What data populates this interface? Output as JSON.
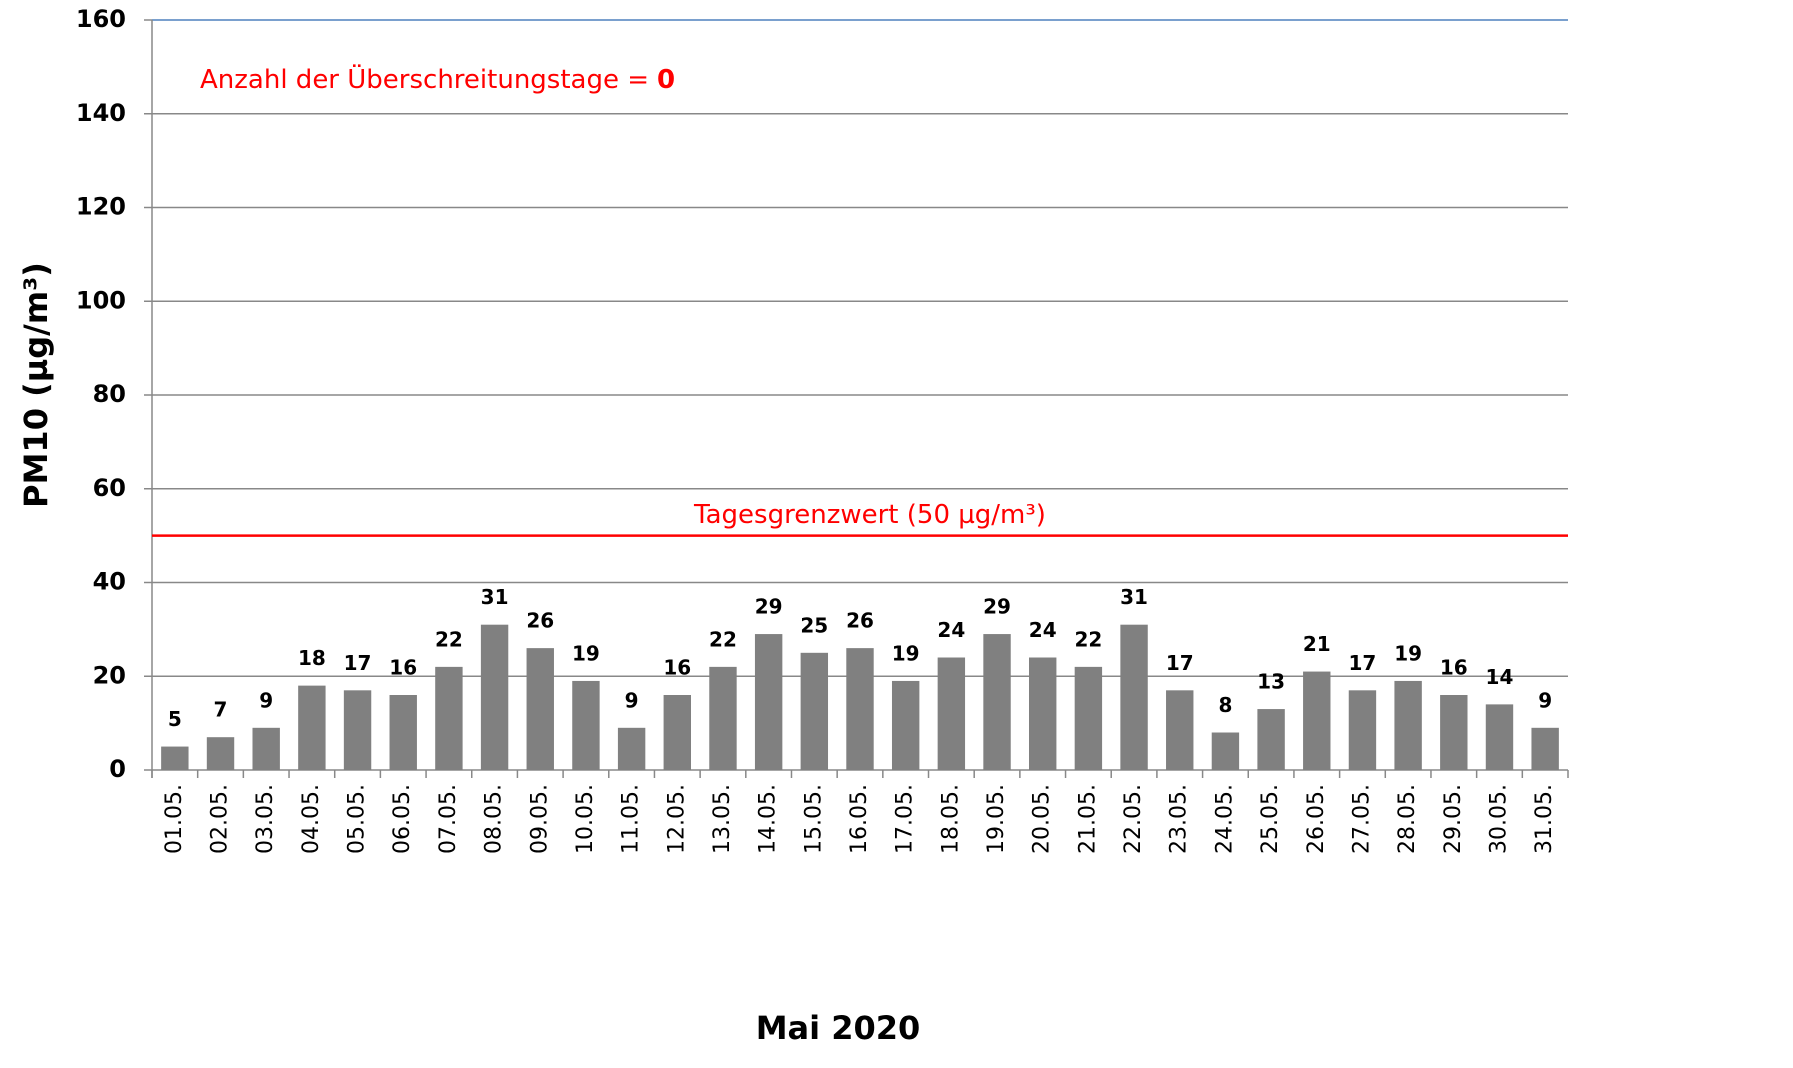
{
  "chart_data": {
    "type": "bar",
    "x_label": "Mai 2020",
    "y_label": "PM10 (µg/m³)",
    "categories": [
      "01.05.",
      "02.05.",
      "03.05.",
      "04.05.",
      "05.05.",
      "06.05.",
      "07.05.",
      "08.05.",
      "09.05.",
      "10.05.",
      "11.05.",
      "12.05.",
      "13.05.",
      "14.05.",
      "15.05.",
      "16.05.",
      "17.05.",
      "18.05.",
      "19.05.",
      "20.05.",
      "21.05.",
      "22.05.",
      "23.05.",
      "24.05.",
      "25.05.",
      "26.05.",
      "27.05.",
      "28.05.",
      "29.05.",
      "30.05.",
      "31.05."
    ],
    "values": [
      5,
      7,
      9,
      18,
      17,
      16,
      22,
      31,
      26,
      19,
      9,
      16,
      22,
      29,
      25,
      26,
      19,
      24,
      29,
      24,
      22,
      31,
      17,
      8,
      13,
      21,
      17,
      19,
      16,
      14,
      9
    ],
    "color": "#808080",
    "ylim": [
      0,
      160
    ],
    "yticks": [
      0,
      20,
      40,
      60,
      80,
      100,
      120,
      140,
      160
    ],
    "grid": true,
    "limit_line": {
      "value": 50,
      "label": "Tagesgrenzwert (50 µg/m³)",
      "color": "#ff0000"
    },
    "annotation": {
      "text": "Anzahl der Überschreitungstage =",
      "count": 0,
      "color": "#ff0000"
    }
  }
}
